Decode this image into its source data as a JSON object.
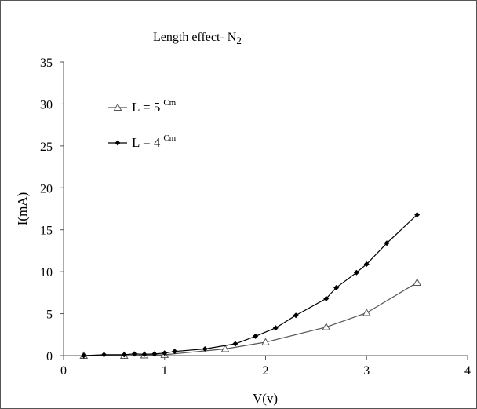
{
  "chart_data": {
    "type": "line",
    "title": "Length effect- N",
    "title_subscript": "2",
    "xlabel": "V(v)",
    "ylabel": "I(mA)",
    "xlim": [
      0,
      4
    ],
    "ylim": [
      0,
      35
    ],
    "x_ticks": [
      "0",
      "1",
      "2",
      "3",
      "4"
    ],
    "y_ticks": [
      "0",
      "5",
      "10",
      "15",
      "20",
      "25",
      "30",
      "35"
    ],
    "grid": false,
    "legend_position": "upper-left",
    "series": [
      {
        "name": "L = 5",
        "name_superscript": "Cm",
        "marker": "open-triangle",
        "color": "#555555",
        "x": [
          0.2,
          0.6,
          0.8,
          1.0,
          1.6,
          2.0,
          2.6,
          3.0,
          3.5
        ],
        "y": [
          0.0,
          0.0,
          0.05,
          0.1,
          0.8,
          1.6,
          3.4,
          5.1,
          8.7
        ]
      },
      {
        "name": "L = 4",
        "name_superscript": "Cm",
        "marker": "filled-diamond",
        "color": "#000000",
        "x": [
          0.2,
          0.4,
          0.6,
          0.7,
          0.8,
          0.9,
          1.0,
          1.1,
          1.4,
          1.7,
          1.9,
          2.1,
          2.3,
          2.6,
          2.7,
          2.9,
          3.0,
          3.2,
          3.5
        ],
        "y": [
          0.0,
          0.1,
          0.1,
          0.2,
          0.15,
          0.2,
          0.3,
          0.5,
          0.8,
          1.4,
          2.3,
          3.3,
          4.8,
          6.8,
          8.1,
          9.9,
          10.9,
          13.4,
          16.8
        ]
      }
    ]
  }
}
